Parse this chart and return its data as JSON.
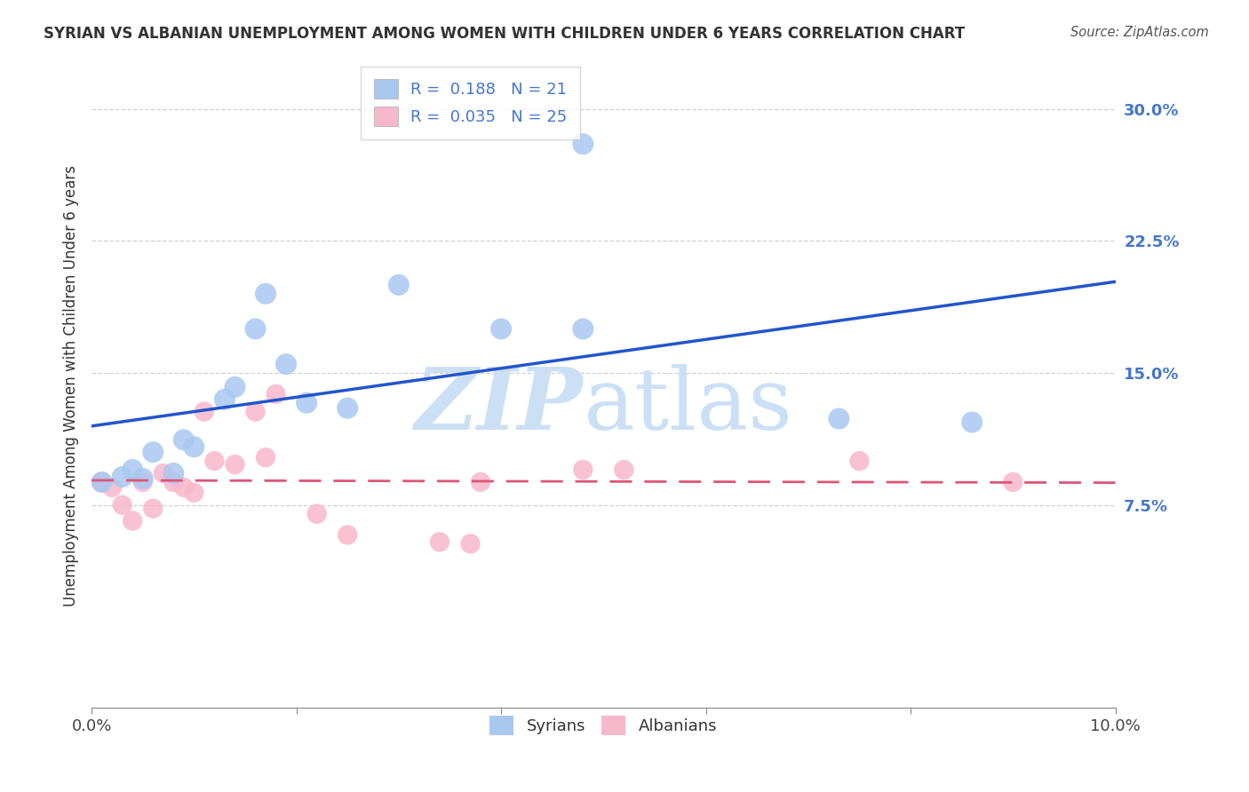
{
  "title": "SYRIAN VS ALBANIAN UNEMPLOYMENT AMONG WOMEN WITH CHILDREN UNDER 6 YEARS CORRELATION CHART",
  "source": "Source: ZipAtlas.com",
  "ylabel": "Unemployment Among Women with Children Under 6 years",
  "xlim": [
    0.0,
    0.1
  ],
  "ylim": [
    -0.04,
    0.325
  ],
  "yticks": [
    0.075,
    0.15,
    0.225,
    0.3
  ],
  "ytick_labels": [
    "7.5%",
    "15.0%",
    "22.5%",
    "30.0%"
  ],
  "xticks": [
    0.0,
    0.02,
    0.04,
    0.06,
    0.08,
    0.1
  ],
  "xtick_labels": [
    "0.0%",
    "",
    "",
    "",
    "",
    "10.0%"
  ],
  "legend_r_syrian": "0.188",
  "legend_n_syrian": "21",
  "legend_r_albanian": "0.035",
  "legend_n_albanian": "25",
  "syrians_x": [
    0.001,
    0.003,
    0.004,
    0.005,
    0.006,
    0.008,
    0.009,
    0.01,
    0.013,
    0.014,
    0.016,
    0.017,
    0.019,
    0.021,
    0.025,
    0.03,
    0.04,
    0.048,
    0.073,
    0.086,
    0.048
  ],
  "syrians_y": [
    0.088,
    0.091,
    0.095,
    0.09,
    0.105,
    0.093,
    0.112,
    0.108,
    0.135,
    0.142,
    0.175,
    0.195,
    0.155,
    0.133,
    0.13,
    0.2,
    0.175,
    0.175,
    0.124,
    0.122,
    0.28
  ],
  "albanians_x": [
    0.001,
    0.002,
    0.003,
    0.004,
    0.005,
    0.006,
    0.007,
    0.008,
    0.009,
    0.01,
    0.011,
    0.012,
    0.014,
    0.016,
    0.017,
    0.018,
    0.022,
    0.025,
    0.034,
    0.037,
    0.038,
    0.048,
    0.052,
    0.075,
    0.09
  ],
  "albanians_y": [
    0.088,
    0.085,
    0.075,
    0.066,
    0.088,
    0.073,
    0.093,
    0.088,
    0.085,
    0.082,
    0.128,
    0.1,
    0.098,
    0.128,
    0.102,
    0.138,
    0.07,
    0.058,
    0.054,
    0.053,
    0.088,
    0.095,
    0.095,
    0.1,
    0.088
  ],
  "syrian_color": "#a8c8f0",
  "albanian_color": "#f8b8cc",
  "regression_syrian_color": "#2255cc",
  "regression_albanian_color": "#dd5577",
  "watermark_zip_color": "#cce0f5",
  "watermark_atlas_color": "#cce0f5",
  "background_color": "#ffffff",
  "grid_color": "#cccccc",
  "ytick_color": "#4477cc"
}
